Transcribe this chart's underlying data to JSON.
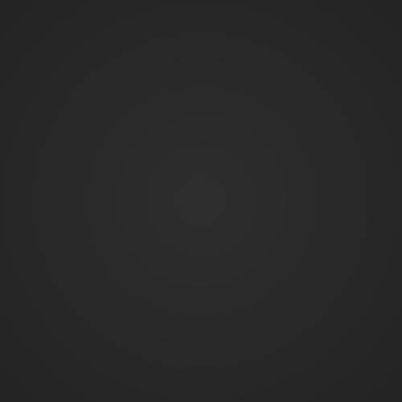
{
  "background_color_center": "#2e2e2e",
  "background_color_corner": "#242424",
  "fig_width": 5.0,
  "fig_height": 5.0,
  "dpi": 100
}
